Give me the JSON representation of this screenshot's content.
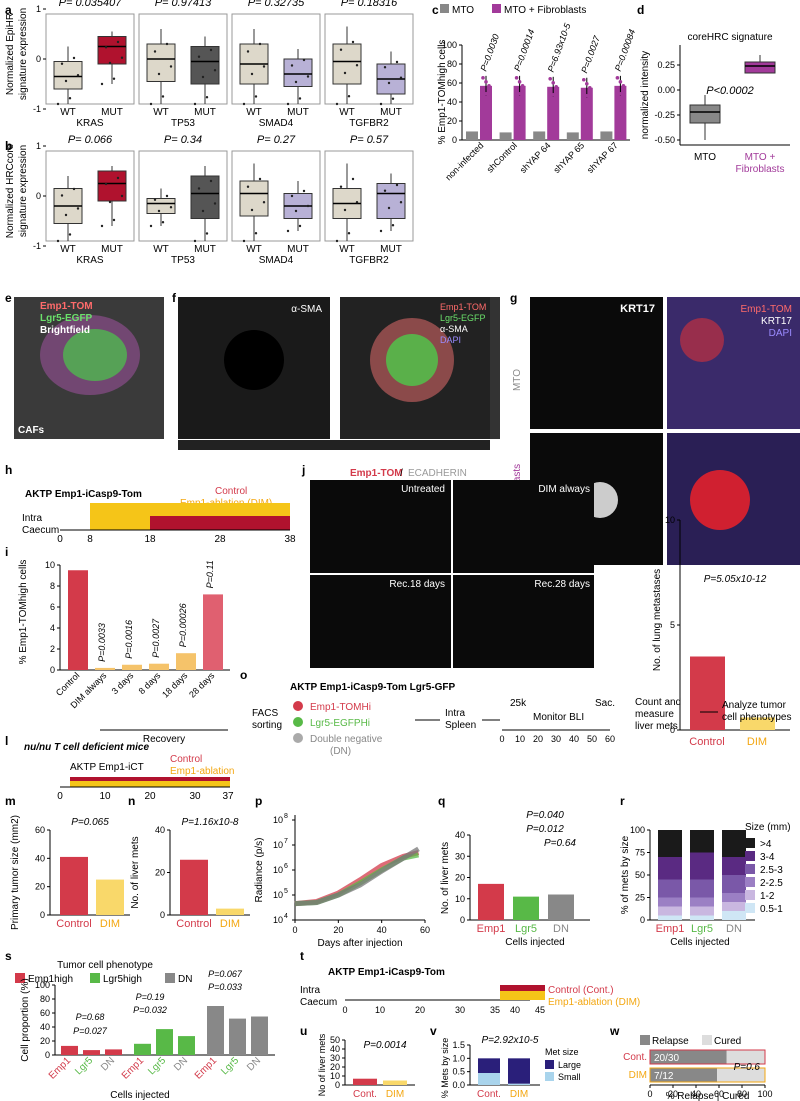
{
  "panel_letters": [
    "a",
    "b",
    "c",
    "d",
    "e",
    "f",
    "g",
    "h",
    "i",
    "j",
    "k",
    "l",
    "m",
    "n",
    "o",
    "p",
    "q",
    "r",
    "s",
    "t",
    "u",
    "v",
    "w"
  ],
  "colors": {
    "red": "#d33a4a",
    "darkred": "#b0122e",
    "yellow": "#f5c518",
    "orange": "#f3a712",
    "purple": "#a23a9a",
    "lavender": "#b8b1d6",
    "beige": "#ddd8ca",
    "gray": "#888888",
    "green": "#58b947",
    "navy": "#2a1f7a",
    "lightblue": "#a9d4ec",
    "darkgray": "#555555"
  },
  "panel_a": {
    "ylabel": [
      "Normalized EpiHR",
      "signature expression"
    ],
    "groups": [
      "WT",
      "MUT"
    ],
    "genes": [
      {
        "name": "KRAS",
        "p": "P= 0.035407",
        "wt": [
          -0.9,
          -0.6,
          -0.35,
          -0.05,
          0.25
        ],
        "mut": [
          -0.5,
          -0.1,
          0.25,
          0.45,
          0.55
        ]
      },
      {
        "name": "TP53",
        "p": "P= 0.97413",
        "wt": [
          -0.9,
          -0.45,
          0,
          0.3,
          0.6
        ],
        "mut": [
          -0.9,
          -0.5,
          -0.05,
          0.25,
          0.45
        ]
      },
      {
        "name": "SMAD4",
        "p": "P= 0.32735",
        "wt": [
          -0.9,
          -0.5,
          -0.1,
          0.3,
          0.6
        ],
        "mut": [
          -0.9,
          -0.55,
          -0.3,
          0.0,
          0.2
        ]
      },
      {
        "name": "TGFBR2",
        "p": "P= 0.18316",
        "wt": [
          -0.9,
          -0.5,
          -0.05,
          0.3,
          0.65
        ],
        "mut": [
          -0.9,
          -0.7,
          -0.4,
          -0.1,
          0.15
        ]
      }
    ]
  },
  "panel_b": {
    "ylabel": [
      "Normalized HRCcore",
      "signature expression"
    ],
    "groups": [
      "WT",
      "MUT"
    ],
    "genes": [
      {
        "name": "KRAS",
        "p": "P= 0.066",
        "wt": [
          -0.9,
          -0.55,
          -0.2,
          0.15,
          0.4
        ],
        "mut": [
          -0.6,
          -0.1,
          0.25,
          0.5,
          0.6
        ]
      },
      {
        "name": "TP53",
        "p": "P= 0.34",
        "wt": [
          -0.6,
          -0.35,
          -0.15,
          -0.05,
          0.15
        ],
        "mut": [
          -0.9,
          -0.45,
          0.05,
          0.4,
          0.6
        ]
      },
      {
        "name": "SMAD4",
        "p": "P= 0.27",
        "wt": [
          -0.9,
          -0.4,
          0.05,
          0.3,
          0.65
        ],
        "mut": [
          -0.7,
          -0.45,
          -0.2,
          0.05,
          0.3
        ]
      },
      {
        "name": "TGFBR2",
        "p": "P= 0.57",
        "wt": [
          -0.9,
          -0.45,
          -0.15,
          0.15,
          0.65
        ],
        "mut": [
          -0.7,
          -0.45,
          0.05,
          0.25,
          0.45
        ]
      }
    ]
  },
  "chart_data": [
    {
      "panel": "c",
      "type": "bar",
      "ylabel": "% Emp1-TOMhigh cells",
      "legend": [
        "MTO",
        "MTO + Fibroblasts"
      ],
      "categories": [
        "non-infected",
        "shControl",
        "shYAP 64",
        "shYAP 65",
        "shYAP 67"
      ],
      "series": [
        {
          "name": "MTO",
          "values": [
            9,
            8,
            9,
            8,
            9
          ]
        },
        {
          "name": "MTO + Fibroblasts",
          "values": [
            57,
            57,
            56,
            55,
            57
          ]
        }
      ],
      "pvalues": [
        "P=0.0030",
        "P=0.00014",
        "P=6.93x10-5",
        "P=0.0027",
        "P=0.00084"
      ],
      "ylim": [
        0,
        100
      ]
    },
    {
      "panel": "d",
      "type": "box",
      "title": "coreHRC signature",
      "ylabel": "normalized intensity",
      "categories": [
        "MTO",
        "MTO + Fibroblasts"
      ],
      "p": "P<0.0002",
      "ylim": [
        -0.55,
        0.45
      ]
    },
    {
      "panel": "i",
      "type": "bar",
      "ylabel": "% Emp1-TOMhigh cells",
      "categories": [
        "Control",
        "DIM always",
        "3 days",
        "8 days",
        "18 days",
        "28 days"
      ],
      "group_label": "Recovery",
      "values": [
        9.5,
        0.2,
        0.5,
        0.6,
        1.6,
        7.2
      ],
      "pvalues": [
        "P=0.0033",
        "P=0.0016",
        "P=0.0027",
        "P=0.00026",
        "P=0.11"
      ],
      "ylim": [
        0,
        10
      ]
    },
    {
      "panel": "k",
      "type": "bar",
      "ylabel": "No. of lung metastases",
      "categories": [
        "Control",
        "DIM"
      ],
      "values": [
        3.5,
        0.6
      ],
      "p": "P=5.05x10-12",
      "ylim": [
        0,
        10
      ]
    },
    {
      "panel": "m",
      "type": "bar",
      "ylabel": "Primary tumor size (mm2)",
      "categories": [
        "Control",
        "DIM"
      ],
      "values": [
        41,
        25
      ],
      "p": "P=0.065",
      "ylim": [
        0,
        60
      ]
    },
    {
      "panel": "n",
      "type": "bar",
      "ylabel": "No. of liver mets",
      "categories": [
        "Control",
        "DIM"
      ],
      "values": [
        26,
        3
      ],
      "p": "P=1.16x10-8",
      "ylim": [
        0,
        40
      ]
    },
    {
      "panel": "p",
      "type": "line",
      "xlabel": "Days after injection",
      "ylabel": "Radiance (p/s)",
      "log": true,
      "series": [
        {
          "name": "Emp1",
          "x": [
            0,
            10,
            20,
            30,
            40,
            50,
            57
          ],
          "y": [
            45000.0,
            55000.0,
            120000.0,
            400000.0,
            1500000.0,
            3500000.0,
            5000000.0
          ]
        },
        {
          "name": "Lgr5",
          "x": [
            0,
            10,
            20,
            30,
            40,
            50,
            57
          ],
          "y": [
            45000.0,
            50000.0,
            100000.0,
            300000.0,
            1000000.0,
            3000000.0,
            4000000.0
          ]
        },
        {
          "name": "DN",
          "x": [
            0,
            10,
            20,
            30,
            40,
            50,
            57
          ],
          "y": [
            45000.0,
            50000.0,
            100000.0,
            250000.0,
            900000.0,
            3000000.0,
            7000000.0
          ]
        }
      ]
    },
    {
      "panel": "q",
      "type": "bar",
      "ylabel": "No. of liver mets",
      "xlabel": "Cells injected",
      "categories": [
        "Emp1",
        "Lgr5",
        "DN"
      ],
      "values": [
        17,
        11,
        12
      ],
      "pvalues": [
        "P=0.040",
        "P=0.012",
        "P=0.64"
      ],
      "ylim": [
        0,
        40
      ]
    },
    {
      "panel": "r",
      "type": "stacked_bar",
      "ylabel": "% of mets by size",
      "xlabel": "Cells injected",
      "categories": [
        "Emp1",
        "Lgr5",
        "DN"
      ],
      "legend_title": "Size (mm)",
      "sizes": [
        ">4",
        "3-4",
        "2.5-3",
        "2-2.5",
        "1-2",
        "0.5-1"
      ],
      "values": [
        [
          30,
          25,
          20,
          10,
          10,
          5
        ],
        [
          25,
          30,
          20,
          10,
          10,
          5
        ],
        [
          30,
          20,
          20,
          10,
          10,
          10
        ]
      ]
    },
    {
      "panel": "s",
      "type": "bar",
      "title": "Tumor cell phenotype",
      "ylabel": "Cell proportion (%)",
      "xlabel": "Cells injected",
      "legend": [
        "Emp1high",
        "Lgr5high",
        "DN"
      ],
      "groups": [
        "Emp1",
        "Lgr5",
        "DN"
      ],
      "series": [
        {
          "name": "Emp1high",
          "values": [
            13,
            7,
            8
          ]
        },
        {
          "name": "Lgr5high",
          "values": [
            16,
            37,
            27
          ]
        },
        {
          "name": "DN",
          "values": [
            70,
            52,
            55
          ]
        }
      ],
      "pvalues": [
        "P=0.68",
        "P=0.027",
        "P=0.19",
        "P=0.032",
        "P=0.067",
        "P=0.033"
      ],
      "ylim": [
        0,
        100
      ]
    },
    {
      "panel": "u",
      "type": "bar",
      "ylabel": "No of liver mets",
      "categories": [
        "Cont.",
        "DIM"
      ],
      "values": [
        7,
        5
      ],
      "p": "P=0.0014",
      "ylim": [
        0,
        50
      ]
    },
    {
      "panel": "v",
      "type": "stacked_bar",
      "ylabel": "% Mets by size",
      "categories": [
        "Cont.",
        "DIM"
      ],
      "legend_title": "Met size",
      "legend": [
        "Large",
        "Small"
      ],
      "values": [
        [
          0.55,
          0.45
        ],
        [
          0.95,
          0.05
        ]
      ],
      "p": "P=2.92x10-5",
      "ylim": [
        0,
        1.5
      ]
    },
    {
      "panel": "w",
      "type": "stacked_hbar",
      "xlabel": "% Relapse | Cured",
      "legend": [
        "Relapse",
        "Cured"
      ],
      "categories": [
        "Cont.",
        "DIM"
      ],
      "values": [
        [
          66.7,
          33.3
        ],
        [
          58.3,
          41.7
        ]
      ],
      "labels": [
        "20/30",
        "7/12"
      ],
      "p": "P=0.6",
      "xlim": [
        0,
        100
      ]
    }
  ],
  "panel_c_ticks": [
    "0",
    "20",
    "40",
    "60",
    "80",
    "100"
  ],
  "panel_d_ticks": [
    "0.25",
    "0.00",
    "-0.25",
    "-0.50"
  ],
  "panel_i_ticks": [
    "0",
    "2",
    "4",
    "6",
    "8",
    "10"
  ],
  "panel_k_ticks": [
    "0",
    "5",
    "10"
  ],
  "panel_m_ticks": [
    "0",
    "20",
    "40",
    "60"
  ],
  "panel_n_ticks": [
    "0",
    "20",
    "40"
  ],
  "panel_p_ticks": [
    "10",
    "10",
    "10",
    "10",
    "10"
  ],
  "panel_p_exps": [
    "4",
    "5",
    "6",
    "7",
    "8"
  ],
  "panel_p_xticks": [
    "0",
    "20",
    "40",
    "60"
  ],
  "panel_q_ticks": [
    "0",
    "10",
    "20",
    "30",
    "40"
  ],
  "panel_r_ticks": [
    "0",
    "25",
    "50",
    "75",
    "100"
  ],
  "panel_s_ticks": [
    "0",
    "20",
    "40",
    "60",
    "80",
    "100"
  ],
  "panel_u_ticks": [
    "0",
    "10",
    "20",
    "30",
    "40",
    "50"
  ],
  "panel_v_ticks": [
    "0.0",
    "0.5",
    "1.0",
    "1.5"
  ],
  "panel_w_ticks": [
    "0",
    "20",
    "40",
    "60",
    "80",
    "100"
  ],
  "images": {
    "e": [
      "Emp1-TOM",
      "Lgr5-EGFP",
      "Brightfield",
      "CAFs"
    ],
    "f": [
      "α-SMA",
      "Emp1-TOM",
      "Lgr5-EGFP",
      "α-SMA",
      "DAPI"
    ],
    "g": [
      "KRT17",
      "Emp1-TOM",
      "KRT17",
      "DAPI",
      "MTO",
      "MTO + Fibroblasts"
    ],
    "j": [
      "Emp1-TOM",
      " / ",
      "ECADHERIN",
      "Untreated",
      "DIM always",
      "Rec.18 days",
      "Rec.28 days"
    ]
  },
  "schemes": {
    "h": {
      "title": "AKTP Emp1-iCasp9-Tom",
      "legend1": "Control",
      "legend2": "Emp1-ablation (DIM)",
      "site": [
        "Intra",
        "Caecum"
      ],
      "ticks": [
        "0",
        "8",
        "18",
        "28",
        "38"
      ]
    },
    "l": {
      "title": "nu/nu T cell deficient mice",
      "sub": "AKTP Emp1-iCT",
      "legend1": "Control",
      "legend2": "Emp1-ablation",
      "ticks": [
        "0",
        "10",
        "20",
        "30",
        "37"
      ]
    },
    "o": {
      "title": "AKTP Emp1-iCasp9-Tom Lgr5-GFP",
      "sort": [
        "FACS",
        "sorting"
      ],
      "pops": [
        "Emp1-TOMHi",
        "Lgr5-EGFPHi",
        "Double negative",
        "(DN)"
      ],
      "route": [
        "Intra",
        "Spleen"
      ],
      "cells": "25k",
      "monitor": "Monitor BLI",
      "sac": "Sac.",
      "count": [
        "Count and",
        "measure",
        "liver mets"
      ],
      "analyze": [
        "Analyze tumor",
        "cell phenotypes"
      ],
      "ticks": [
        "0",
        "10",
        "20",
        "30",
        "40",
        "50",
        "60"
      ]
    },
    "t": {
      "title": "AKTP Emp1-iCasp9-Tom",
      "site": [
        "Intra",
        "Caecum"
      ],
      "legend1": "Control (Cont.)",
      "legend2": "Emp1-ablation (DIM)",
      "ticks": [
        "0",
        "10",
        "20",
        "30",
        "35",
        "40",
        "45"
      ]
    }
  }
}
